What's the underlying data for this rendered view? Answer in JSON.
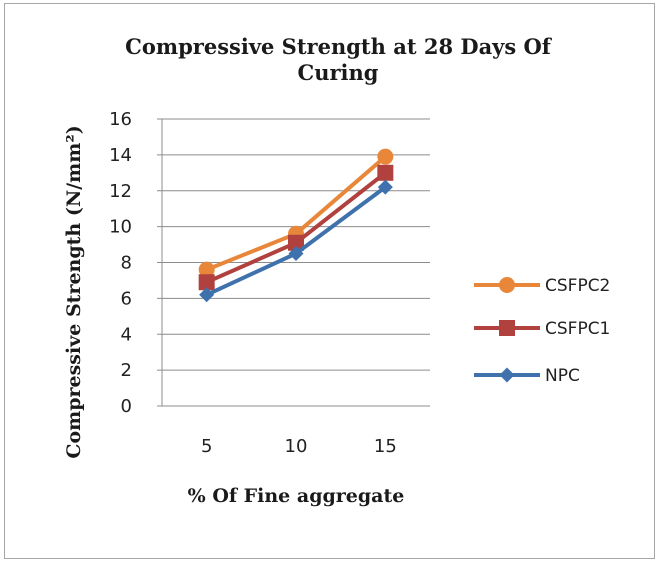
{
  "chart_data": {
    "type": "line",
    "title": "Compressive Strength at 28 Days Of Curing",
    "title_lines": [
      "Compressive Strength at 28 Days Of",
      "Curing"
    ],
    "xlabel": "% Of Fine aggregate",
    "ylabel": "Compressive Strength (N/mm²)",
    "categories": [
      "5",
      "10",
      "15"
    ],
    "ylim": [
      0,
      16
    ],
    "yticks": [
      "0",
      "2",
      "4",
      "6",
      "8",
      "10",
      "12",
      "14",
      "16"
    ],
    "grid": "horizontal",
    "legend_position": "right",
    "series": [
      {
        "name": "CSFPC2",
        "values": [
          7.6,
          9.6,
          13.9
        ],
        "color": "#e8873a",
        "marker": "circle"
      },
      {
        "name": "CSFPC1",
        "values": [
          6.9,
          9.1,
          13.0
        ],
        "color": "#b0413e",
        "marker": "square"
      },
      {
        "name": "NPC",
        "values": [
          6.2,
          8.5,
          12.2
        ],
        "color": "#3f71ad",
        "marker": "diamond"
      }
    ]
  }
}
